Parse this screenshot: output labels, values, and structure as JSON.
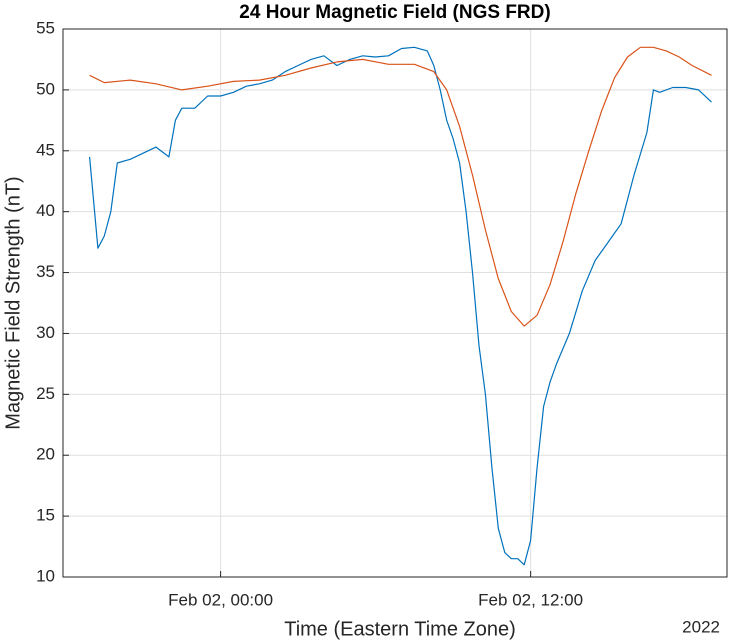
{
  "chart_data": {
    "type": "line",
    "title": "24 Hour Magnetic Field (NGS FRD)",
    "xlabel": "Time (Eastern Time Zone)",
    "ylabel": "Magnetic Field Strength (nT)",
    "x_secondary_label": "2022",
    "xlim": [
      -6.1,
      19.6
    ],
    "xticks": [
      {
        "value": 0,
        "label": "Feb 02, 00:00"
      },
      {
        "value": 12,
        "label": "Feb 02, 12:00"
      }
    ],
    "ylim": [
      10,
      55
    ],
    "yticks": [
      10,
      15,
      20,
      25,
      30,
      35,
      40,
      45,
      50,
      55
    ],
    "grid": true,
    "series": [
      {
        "color": "#0072bd",
        "x": [
          -5.07,
          -4.75,
          -4.5,
          -4.25,
          -4.0,
          -3.5,
          -3.0,
          -2.5,
          -2.0,
          -1.75,
          -1.5,
          -1.0,
          -0.5,
          0,
          0.5,
          1.0,
          1.5,
          2,
          2.5,
          3,
          3.5,
          4,
          4.5,
          5,
          5.5,
          6,
          6.5,
          7,
          7.5,
          8,
          8.25,
          8.5,
          8.75,
          9.0,
          9.25,
          9.5,
          9.75,
          10.0,
          10.25,
          10.5,
          10.75,
          11.0,
          11.25,
          11.5,
          11.75,
          12.0,
          12.25,
          12.5,
          12.75,
          13.0,
          13.5,
          14,
          14.5,
          15,
          15.5,
          16,
          16.5,
          16.75,
          17,
          17.5,
          18,
          18.5,
          19
        ],
        "values": [
          44.5,
          37,
          38,
          40,
          44,
          44.3,
          44.8,
          45.3,
          44.5,
          47.5,
          48.5,
          48.5,
          49.5,
          49.5,
          49.8,
          50.3,
          50.5,
          50.8,
          51.5,
          52,
          52.5,
          52.8,
          52,
          52.5,
          52.8,
          52.7,
          52.8,
          53.4,
          53.5,
          53.2,
          52,
          50,
          47.5,
          46,
          44,
          40,
          35,
          29,
          25,
          19,
          14,
          12,
          11.5,
          11.5,
          11,
          13,
          19,
          24,
          26,
          27.5,
          30,
          33.5,
          36,
          37.5,
          39,
          43,
          46.5,
          50,
          49.8,
          50.2,
          50.2,
          50,
          49
        ]
      },
      {
        "color": "#d95319",
        "x": [
          -5.07,
          -4.5,
          -3.5,
          -2.5,
          -1.5,
          -0.5,
          0.5,
          1.5,
          2.5,
          3.5,
          4.5,
          5.5,
          6.5,
          7.5,
          8.25,
          8.75,
          9.25,
          9.75,
          10.25,
          10.75,
          11.25,
          11.75,
          12.25,
          12.75,
          13.25,
          13.75,
          14.25,
          14.75,
          15.25,
          15.75,
          16.25,
          16.75,
          17.25,
          17.75,
          18.25,
          19.0
        ],
        "values": [
          51.2,
          50.6,
          50.8,
          50.5,
          50.0,
          50.3,
          50.7,
          50.8,
          51.2,
          51.8,
          52.3,
          52.5,
          52.1,
          52.1,
          51.5,
          50,
          47,
          43,
          38.5,
          34.5,
          31.8,
          30.6,
          31.5,
          34,
          37.5,
          41.5,
          45,
          48.3,
          51,
          52.7,
          53.5,
          53.5,
          53.2,
          52.7,
          52,
          51.2
        ]
      }
    ]
  }
}
